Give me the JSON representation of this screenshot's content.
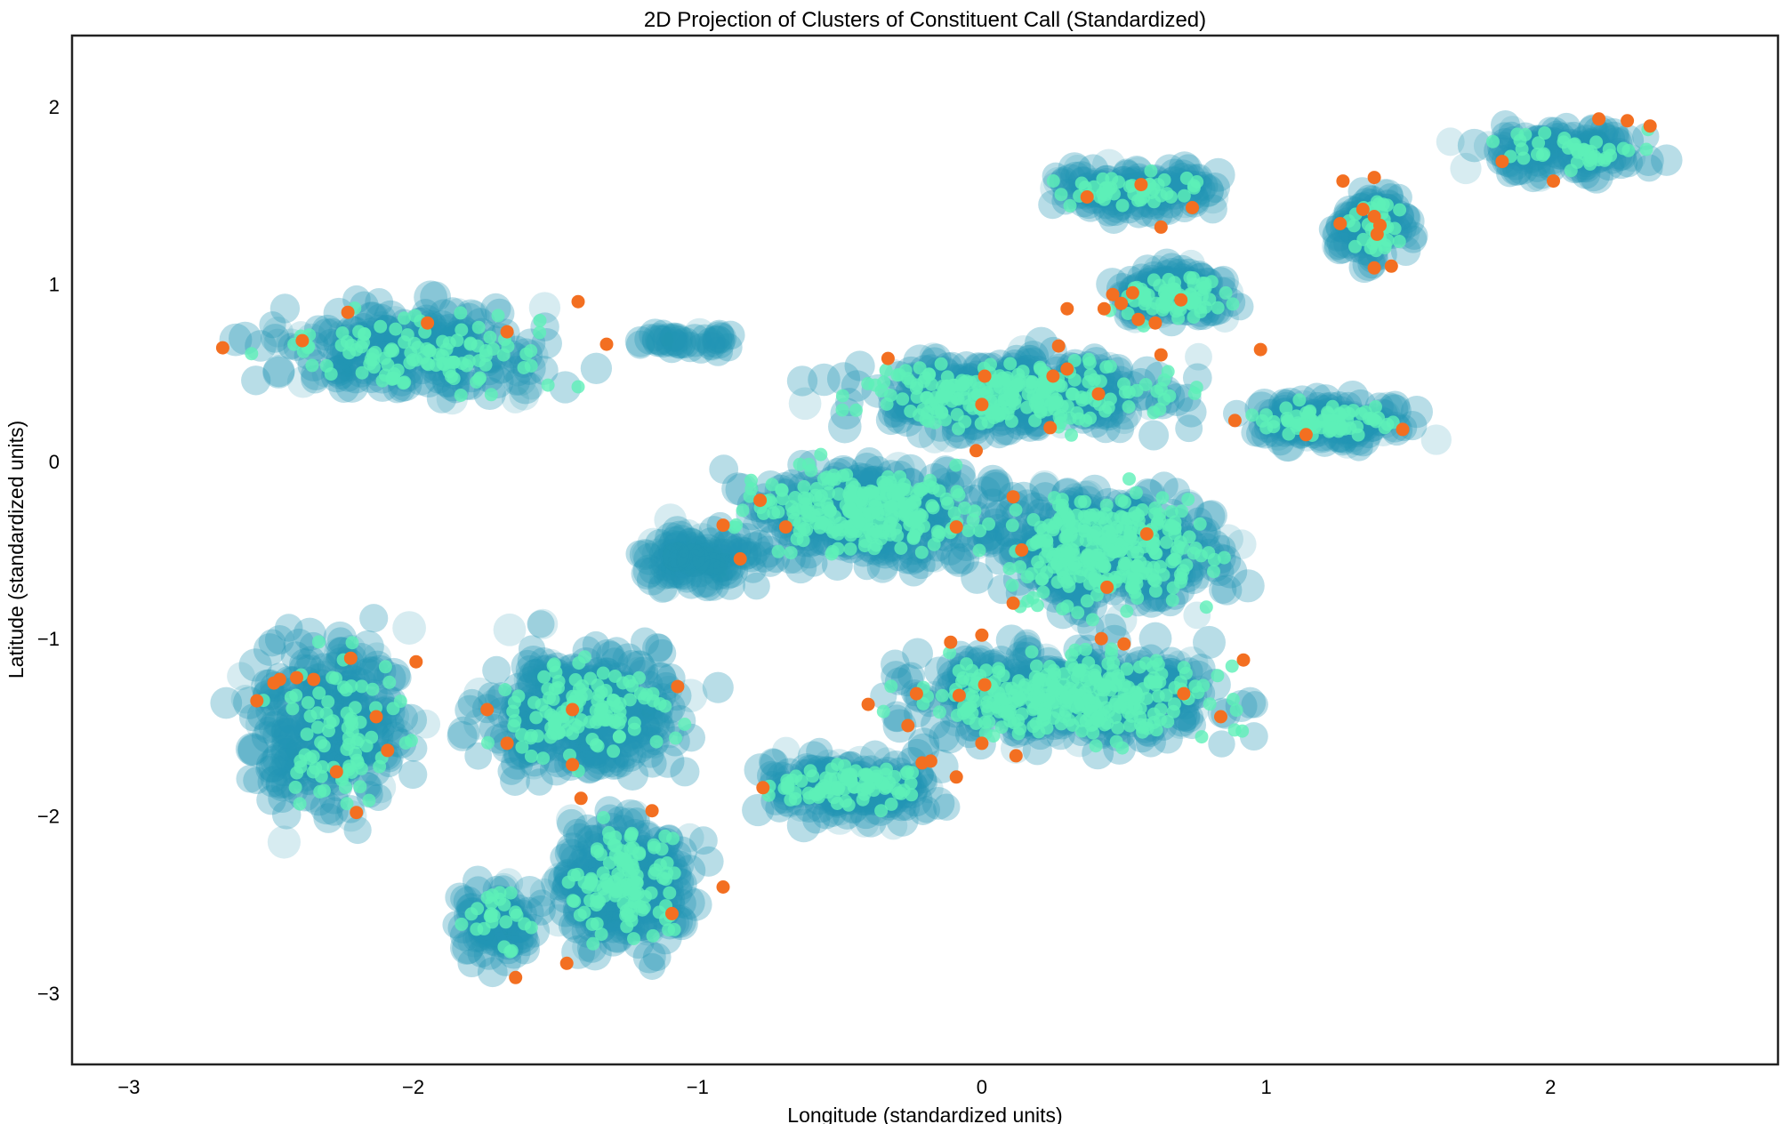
{
  "chart_data": {
    "type": "scatter",
    "title": "2D Projection of Clusters of Constituent Call (Standardized)",
    "xlabel": "Longitude (standardized units)",
    "ylabel": "Latitude (standardized units)",
    "xlim": [
      -3.2,
      2.8
    ],
    "ylim": [
      -3.4,
      2.4
    ],
    "x_ticks": [
      -3,
      -2,
      -1,
      0,
      1,
      2
    ],
    "y_ticks": [
      -3,
      -2,
      -1,
      0,
      1,
      2
    ],
    "x_tick_labels": [
      "−3",
      "−2",
      "−1",
      "0",
      "1",
      "2"
    ],
    "y_tick_labels": [
      "−3",
      "−2",
      "−1",
      "0",
      "1",
      "2"
    ],
    "grid": false,
    "legend": "none",
    "colors": {
      "background_points": "#2196b3",
      "member_points": "#5ef0b8",
      "center_points": "#f36f21",
      "frame": "#222222"
    },
    "series": [
      {
        "role": "background",
        "regions": [
          {
            "x": [
              -2.7,
              -1.3
            ],
            "y": [
              0.25,
              1.0
            ],
            "n": 260
          },
          {
            "x": [
              -1.3,
              -0.8
            ],
            "y": [
              0.6,
              0.75
            ],
            "n": 40
          },
          {
            "x": [
              0.1,
              0.95
            ],
            "y": [
              1.35,
              1.7
            ],
            "n": 150
          },
          {
            "x": [
              1.2,
              1.55
            ],
            "y": [
              1.05,
              1.6
            ],
            "n": 110
          },
          {
            "x": [
              1.6,
              2.5
            ],
            "y": [
              1.55,
              1.95
            ],
            "n": 140
          },
          {
            "x": [
              0.4,
              0.95
            ],
            "y": [
              0.75,
              1.15
            ],
            "n": 160
          },
          {
            "x": [
              -0.7,
              0.9
            ],
            "y": [
              0.05,
              0.7
            ],
            "n": 380
          },
          {
            "x": [
              0.8,
              1.65
            ],
            "y": [
              0.05,
              0.4
            ],
            "n": 160
          },
          {
            "x": [
              -1.0,
              0.2
            ],
            "y": [
              -0.7,
              0.1
            ],
            "n": 380
          },
          {
            "x": [
              -0.1,
              1.0
            ],
            "y": [
              -1.0,
              0.0
            ],
            "n": 420
          },
          {
            "x": [
              -0.5,
              1.1
            ],
            "y": [
              -1.7,
              -0.95
            ],
            "n": 460
          },
          {
            "x": [
              -0.9,
              0.0
            ],
            "y": [
              -2.1,
              -1.6
            ],
            "n": 200
          },
          {
            "x": [
              -2.7,
              -1.9
            ],
            "y": [
              -2.2,
              -0.8
            ],
            "n": 320
          },
          {
            "x": [
              -1.9,
              -0.9
            ],
            "y": [
              -1.9,
              -0.9
            ],
            "n": 380
          },
          {
            "x": [
              -1.6,
              -0.9
            ],
            "y": [
              -2.9,
              -1.9
            ],
            "n": 300
          },
          {
            "x": [
              -1.9,
              -1.5
            ],
            "y": [
              -2.9,
              -2.3
            ],
            "n": 90
          },
          {
            "x": [
              -1.3,
              -0.7
            ],
            "y": [
              -0.8,
              -0.3
            ],
            "n": 120
          }
        ]
      },
      {
        "role": "members",
        "regions": [
          {
            "x": [
              -2.65,
              -1.35
            ],
            "y": [
              0.3,
              0.95
            ],
            "n": 110
          },
          {
            "x": [
              0.15,
              0.9
            ],
            "y": [
              1.4,
              1.65
            ],
            "n": 45
          },
          {
            "x": [
              1.25,
              1.5
            ],
            "y": [
              1.1,
              1.55
            ],
            "n": 35
          },
          {
            "x": [
              1.7,
              2.45
            ],
            "y": [
              1.6,
              1.9
            ],
            "n": 40
          },
          {
            "x": [
              0.4,
              0.95
            ],
            "y": [
              0.75,
              1.1
            ],
            "n": 70
          },
          {
            "x": [
              -0.6,
              0.85
            ],
            "y": [
              0.1,
              0.65
            ],
            "n": 230
          },
          {
            "x": [
              0.85,
              1.6
            ],
            "y": [
              0.1,
              0.35
            ],
            "n": 70
          },
          {
            "x": [
              -0.95,
              0.15
            ],
            "y": [
              -0.6,
              0.05
            ],
            "n": 240
          },
          {
            "x": [
              -0.05,
              0.95
            ],
            "y": [
              -0.95,
              -0.05
            ],
            "n": 280
          },
          {
            "x": [
              -0.45,
              1.05
            ],
            "y": [
              -1.65,
              -1.0
            ],
            "n": 300
          },
          {
            "x": [
              -0.85,
              -0.05
            ],
            "y": [
              -2.0,
              -1.65
            ],
            "n": 90
          },
          {
            "x": [
              -2.6,
              -1.95
            ],
            "y": [
              -2.1,
              -0.9
            ],
            "n": 80
          },
          {
            "x": [
              -1.85,
              -0.95
            ],
            "y": [
              -1.8,
              -1.0
            ],
            "n": 120
          },
          {
            "x": [
              -1.55,
              -0.95
            ],
            "y": [
              -2.8,
              -1.95
            ],
            "n": 120
          },
          {
            "x": [
              -1.85,
              -1.55
            ],
            "y": [
              -2.8,
              -2.35
            ],
            "n": 25
          }
        ]
      },
      {
        "role": "centers",
        "points": [
          [
            -2.67,
            0.64
          ],
          [
            -2.39,
            0.68
          ],
          [
            -2.23,
            0.84
          ],
          [
            -1.95,
            0.78
          ],
          [
            -1.67,
            0.73
          ],
          [
            -1.42,
            0.9
          ],
          [
            -1.32,
            0.66
          ],
          [
            0.37,
            1.49
          ],
          [
            0.56,
            1.56
          ],
          [
            0.63,
            1.32
          ],
          [
            0.74,
            1.43
          ],
          [
            1.27,
            1.58
          ],
          [
            1.26,
            1.34
          ],
          [
            1.34,
            1.42
          ],
          [
            1.38,
            1.38
          ],
          [
            1.4,
            1.33
          ],
          [
            1.39,
            1.28
          ],
          [
            1.38,
            1.6
          ],
          [
            1.38,
            1.09
          ],
          [
            1.44,
            1.1
          ],
          [
            1.83,
            1.69
          ],
          [
            2.01,
            1.58
          ],
          [
            2.17,
            1.93
          ],
          [
            2.27,
            1.92
          ],
          [
            2.35,
            1.89
          ],
          [
            0.3,
            0.86
          ],
          [
            0.43,
            0.86
          ],
          [
            0.46,
            0.94
          ],
          [
            0.49,
            0.89
          ],
          [
            0.53,
            0.95
          ],
          [
            0.55,
            0.8
          ],
          [
            0.63,
            0.6
          ],
          [
            0.7,
            0.91
          ],
          [
            0.61,
            0.78
          ],
          [
            0.98,
            0.63
          ],
          [
            -0.33,
            0.58
          ],
          [
            0.01,
            0.48
          ],
          [
            0.25,
            0.48
          ],
          [
            0.3,
            0.52
          ],
          [
            0.27,
            0.65
          ],
          [
            0.41,
            0.38
          ],
          [
            0.0,
            0.32
          ],
          [
            0.24,
            0.19
          ],
          [
            -0.02,
            0.06
          ],
          [
            0.89,
            0.23
          ],
          [
            1.14,
            0.15
          ],
          [
            1.48,
            0.18
          ],
          [
            -0.78,
            -0.22
          ],
          [
            -0.91,
            -0.36
          ],
          [
            -0.69,
            -0.37
          ],
          [
            -0.85,
            -0.55
          ],
          [
            -0.09,
            -0.37
          ],
          [
            0.11,
            -0.2
          ],
          [
            0.14,
            -0.5
          ],
          [
            0.58,
            -0.41
          ],
          [
            0.44,
            -0.71
          ],
          [
            0.11,
            -0.8
          ],
          [
            -0.11,
            -1.02
          ],
          [
            0.0,
            -0.98
          ],
          [
            0.42,
            -1.0
          ],
          [
            0.5,
            -1.03
          ],
          [
            -0.4,
            -1.37
          ],
          [
            -0.23,
            -1.31
          ],
          [
            -0.08,
            -1.32
          ],
          [
            0.01,
            -1.26
          ],
          [
            -0.26,
            -1.49
          ],
          [
            -0.21,
            -1.7
          ],
          [
            -0.18,
            -1.69
          ],
          [
            0.0,
            -1.59
          ],
          [
            0.12,
            -1.66
          ],
          [
            -0.09,
            -1.78
          ],
          [
            0.71,
            -1.31
          ],
          [
            0.84,
            -1.44
          ],
          [
            0.92,
            -1.12
          ],
          [
            -2.55,
            -1.35
          ],
          [
            -2.47,
            -1.23
          ],
          [
            -2.49,
            -1.25
          ],
          [
            -2.41,
            -1.22
          ],
          [
            -2.35,
            -1.23
          ],
          [
            -2.22,
            -1.11
          ],
          [
            -2.27,
            -1.75
          ],
          [
            -2.2,
            -1.98
          ],
          [
            -2.13,
            -1.44
          ],
          [
            -2.09,
            -1.63
          ],
          [
            -1.99,
            -1.13
          ],
          [
            -1.74,
            -1.4
          ],
          [
            -1.67,
            -1.59
          ],
          [
            -1.44,
            -1.4
          ],
          [
            -1.44,
            -1.71
          ],
          [
            -1.41,
            -1.9
          ],
          [
            -1.16,
            -1.97
          ],
          [
            -1.07,
            -1.27
          ],
          [
            -0.77,
            -1.84
          ],
          [
            -1.09,
            -2.55
          ],
          [
            -0.91,
            -2.4
          ],
          [
            -1.46,
            -2.83
          ],
          [
            -1.64,
            -2.91
          ]
        ]
      }
    ]
  }
}
